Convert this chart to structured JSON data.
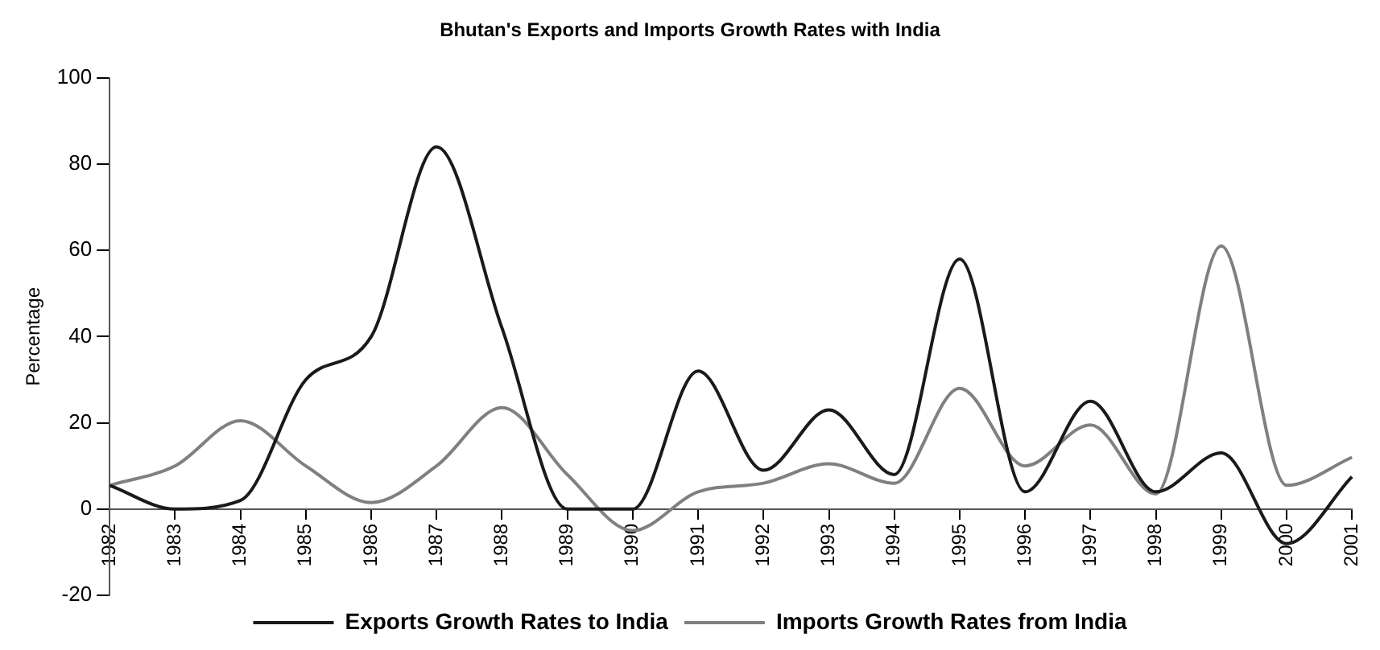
{
  "chart_data": {
    "type": "line",
    "title": "Bhutan's Exports and Imports Growth Rates with India",
    "ylabel": "Percentage",
    "categories": [
      "1982",
      "1983",
      "1984",
      "1985",
      "1986",
      "1987",
      "1988",
      "1989",
      "1990",
      "1991",
      "1992",
      "1993",
      "1994",
      "1995",
      "1996",
      "1997",
      "1998",
      "1999",
      "2000",
      "2001"
    ],
    "series": [
      {
        "name": "Exports Growth Rates to India",
        "color": "#1a1a1a",
        "values": [
          5.5,
          0,
          2,
          30,
          40,
          84,
          42,
          0,
          0,
          32,
          9,
          23,
          8,
          58,
          4,
          25,
          4,
          13,
          -8,
          7.5
        ]
      },
      {
        "name": "Imports Growth Rates from India",
        "color": "#808080",
        "values": [
          5.5,
          10,
          20.5,
          10,
          1.5,
          10,
          23.5,
          8,
          -5,
          4,
          6,
          10.5,
          6,
          28,
          10,
          19.5,
          3.5,
          61,
          5.5,
          12
        ]
      }
    ],
    "ylim": [
      -20,
      100
    ],
    "yticks": [
      -20,
      0,
      20,
      40,
      60,
      80,
      100
    ],
    "grid": false,
    "legend": "bottom",
    "marker": "none",
    "line_style": "solid"
  }
}
